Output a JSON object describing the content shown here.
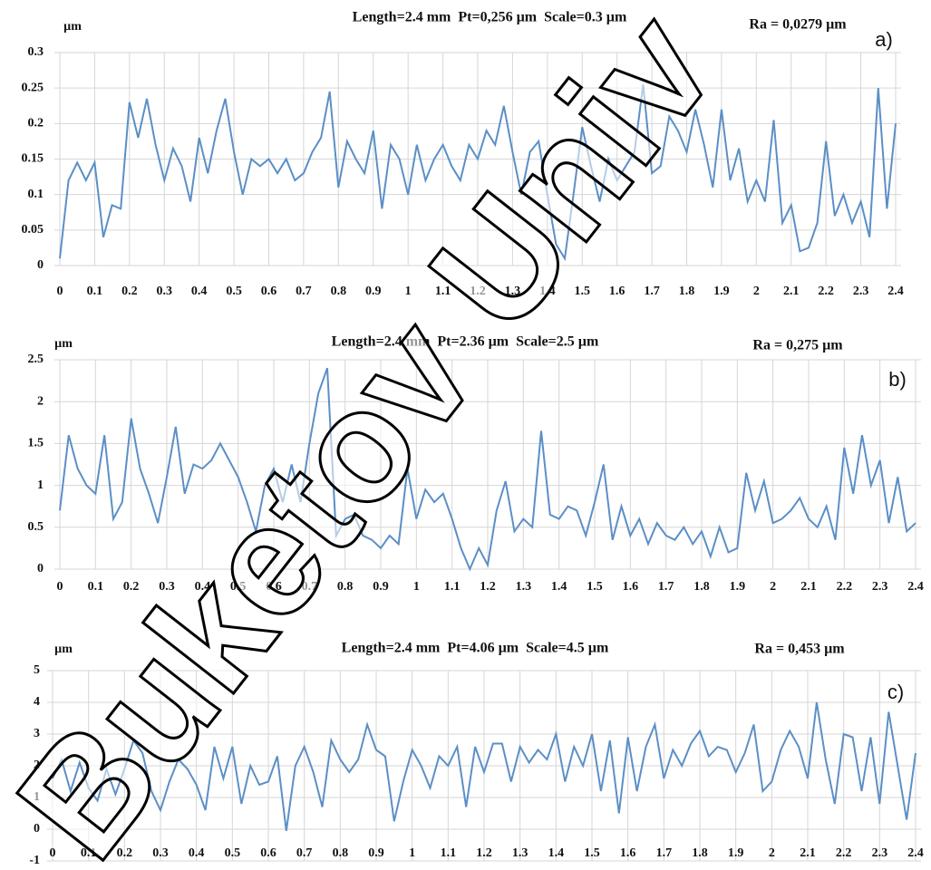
{
  "watermark": "Buketov Univ",
  "chart_data": [
    {
      "type": "line",
      "y_unit": "µm",
      "title": "Length=2.4 mm  Pt=0,256 µm  Scale=0.3 µm",
      "annotation": "Ra = 0,0279 µm",
      "panel": "a)",
      "color": "#5b8fc6",
      "grid": true,
      "x": [
        0,
        0.025,
        0.05,
        0.075,
        0.1,
        0.125,
        0.15,
        0.175,
        0.2,
        0.225,
        0.25,
        0.275,
        0.3,
        0.325,
        0.35,
        0.375,
        0.4,
        0.425,
        0.45,
        0.475,
        0.5,
        0.525,
        0.55,
        0.575,
        0.6,
        0.625,
        0.65,
        0.675,
        0.7,
        0.725,
        0.75,
        0.775,
        0.8,
        0.825,
        0.85,
        0.875,
        0.9,
        0.925,
        0.95,
        0.975,
        1,
        1.025,
        1.05,
        1.075,
        1.1,
        1.125,
        1.15,
        1.175,
        1.2,
        1.225,
        1.25,
        1.275,
        1.3,
        1.325,
        1.35,
        1.375,
        1.4,
        1.425,
        1.45,
        1.475,
        1.5,
        1.525,
        1.55,
        1.575,
        1.6,
        1.625,
        1.65,
        1.675,
        1.7,
        1.725,
        1.75,
        1.775,
        1.8,
        1.825,
        1.85,
        1.875,
        1.9,
        1.925,
        1.95,
        1.975,
        2,
        2.025,
        2.05,
        2.075,
        2.1,
        2.125,
        2.15,
        2.175,
        2.2,
        2.225,
        2.25,
        2.275,
        2.3,
        2.325,
        2.35,
        2.375,
        2.4
      ],
      "values": [
        0.01,
        0.12,
        0.145,
        0.12,
        0.145,
        0.04,
        0.085,
        0.08,
        0.23,
        0.18,
        0.235,
        0.17,
        0.12,
        0.165,
        0.14,
        0.09,
        0.18,
        0.13,
        0.19,
        0.235,
        0.16,
        0.1,
        0.15,
        0.14,
        0.15,
        0.13,
        0.15,
        0.12,
        0.13,
        0.16,
        0.18,
        0.245,
        0.11,
        0.175,
        0.15,
        0.13,
        0.19,
        0.08,
        0.17,
        0.15,
        0.1,
        0.17,
        0.12,
        0.15,
        0.17,
        0.14,
        0.12,
        0.17,
        0.15,
        0.19,
        0.17,
        0.225,
        0.16,
        0.1,
        0.16,
        0.175,
        0.1,
        0.03,
        0.01,
        0.1,
        0.195,
        0.14,
        0.09,
        0.15,
        0.12,
        0.14,
        0.16,
        0.255,
        0.13,
        0.14,
        0.21,
        0.19,
        0.16,
        0.22,
        0.17,
        0.11,
        0.22,
        0.12,
        0.165,
        0.09,
        0.12,
        0.09,
        0.205,
        0.06,
        0.085,
        0.02,
        0.025,
        0.06,
        0.175,
        0.07,
        0.1,
        0.06,
        0.09,
        0.04,
        0.25,
        0.08,
        0.2
      ],
      "xlim": [
        0,
        2.4
      ],
      "xticks": [
        0,
        0.1,
        0.2,
        0.3,
        0.4,
        0.5,
        0.6,
        0.7,
        0.8,
        0.9,
        1,
        1.1,
        1.2,
        1.3,
        1.4,
        1.5,
        1.6,
        1.7,
        1.8,
        1.9,
        2,
        2.1,
        2.2,
        2.3,
        2.4
      ],
      "ylim": [
        0,
        0.3
      ],
      "yticks": [
        0,
        0.05,
        0.1,
        0.15,
        0.2,
        0.25,
        0.3
      ]
    },
    {
      "type": "line",
      "y_unit": "µm",
      "title": "Length=2.4 mm  Pt=2.36 µm  Scale=2.5 µm",
      "annotation": "Ra = 0,275 µm",
      "panel": "b)",
      "color": "#5b8fc6",
      "grid": true,
      "x": [
        0,
        0.025,
        0.05,
        0.075,
        0.1,
        0.125,
        0.15,
        0.175,
        0.2,
        0.225,
        0.25,
        0.275,
        0.3,
        0.325,
        0.35,
        0.375,
        0.4,
        0.425,
        0.45,
        0.475,
        0.5,
        0.525,
        0.55,
        0.575,
        0.6,
        0.625,
        0.65,
        0.675,
        0.7,
        0.725,
        0.75,
        0.775,
        0.8,
        0.825,
        0.85,
        0.875,
        0.9,
        0.925,
        0.95,
        0.975,
        1,
        1.025,
        1.05,
        1.075,
        1.1,
        1.125,
        1.15,
        1.175,
        1.2,
        1.225,
        1.25,
        1.275,
        1.3,
        1.325,
        1.35,
        1.375,
        1.4,
        1.425,
        1.45,
        1.475,
        1.5,
        1.525,
        1.55,
        1.575,
        1.6,
        1.625,
        1.65,
        1.675,
        1.7,
        1.725,
        1.75,
        1.775,
        1.8,
        1.825,
        1.85,
        1.875,
        1.9,
        1.925,
        1.95,
        1.975,
        2,
        2.025,
        2.05,
        2.075,
        2.1,
        2.125,
        2.15,
        2.175,
        2.2,
        2.225,
        2.25,
        2.275,
        2.3,
        2.325,
        2.35,
        2.375,
        2.4
      ],
      "values": [
        0.7,
        1.6,
        1.2,
        1.0,
        0.9,
        1.6,
        0.6,
        0.8,
        1.8,
        1.2,
        0.9,
        0.55,
        1.1,
        1.7,
        0.9,
        1.25,
        1.2,
        1.3,
        1.5,
        1.3,
        1.1,
        0.8,
        0.45,
        1.0,
        1.2,
        0.8,
        1.25,
        0.8,
        1.5,
        2.1,
        2.4,
        0.4,
        0.6,
        0.65,
        0.4,
        0.35,
        0.25,
        0.4,
        0.3,
        1.2,
        0.6,
        0.95,
        0.8,
        0.9,
        0.6,
        0.25,
        0.0,
        0.25,
        0.05,
        0.7,
        1.05,
        0.45,
        0.6,
        0.5,
        1.65,
        0.65,
        0.6,
        0.75,
        0.7,
        0.4,
        0.8,
        1.25,
        0.35,
        0.75,
        0.4,
        0.6,
        0.3,
        0.55,
        0.4,
        0.35,
        0.5,
        0.3,
        0.45,
        0.15,
        0.5,
        0.2,
        0.25,
        1.15,
        0.7,
        1.05,
        0.55,
        0.6,
        0.7,
        0.85,
        0.6,
        0.5,
        0.75,
        0.35,
        1.45,
        0.9,
        1.6,
        1.0,
        1.3,
        0.55,
        1.1,
        0.45,
        0.55
      ],
      "xlim": [
        0,
        2.4
      ],
      "xticks": [
        0,
        0.1,
        0.2,
        0.3,
        0.4,
        0.5,
        0.6,
        0.7,
        0.8,
        0.9,
        1,
        1.1,
        1.2,
        1.3,
        1.4,
        1.5,
        1.6,
        1.7,
        1.8,
        1.9,
        2,
        2.1,
        2.2,
        2.3,
        2.4
      ],
      "ylim": [
        0,
        2.5
      ],
      "yticks": [
        0,
        0.5,
        1,
        1.5,
        2,
        2.5
      ]
    },
    {
      "type": "line",
      "y_unit": "µm",
      "title": "Length=2.4 mm  Pt=4.06 µm  Scale=4.5 µm",
      "annotation": "Ra = 0,453 µm",
      "panel": "c)",
      "color": "#5b8fc6",
      "grid": true,
      "x": [
        0,
        0.025,
        0.05,
        0.075,
        0.1,
        0.125,
        0.15,
        0.175,
        0.2,
        0.225,
        0.25,
        0.275,
        0.3,
        0.325,
        0.35,
        0.375,
        0.4,
        0.425,
        0.45,
        0.475,
        0.5,
        0.525,
        0.55,
        0.575,
        0.6,
        0.625,
        0.65,
        0.675,
        0.7,
        0.725,
        0.75,
        0.775,
        0.8,
        0.825,
        0.85,
        0.875,
        0.9,
        0.925,
        0.95,
        0.975,
        1,
        1.025,
        1.05,
        1.075,
        1.1,
        1.125,
        1.15,
        1.175,
        1.2,
        1.225,
        1.25,
        1.275,
        1.3,
        1.325,
        1.35,
        1.375,
        1.4,
        1.425,
        1.45,
        1.475,
        1.5,
        1.525,
        1.55,
        1.575,
        1.6,
        1.625,
        1.65,
        1.675,
        1.7,
        1.725,
        1.75,
        1.775,
        1.8,
        1.825,
        1.85,
        1.875,
        1.9,
        1.925,
        1.95,
        1.975,
        2,
        2.025,
        2.05,
        2.075,
        2.1,
        2.125,
        2.15,
        2.175,
        2.2,
        2.225,
        2.25,
        2.275,
        2.3,
        2.325,
        2.35,
        2.375,
        2.4
      ],
      "values": [
        1.6,
        2.2,
        1.2,
        2.1,
        1.3,
        0.9,
        1.9,
        1.1,
        1.9,
        2.8,
        2.4,
        1.2,
        0.6,
        1.5,
        2.2,
        1.9,
        1.4,
        0.6,
        2.6,
        1.6,
        2.6,
        0.8,
        2.0,
        1.4,
        1.5,
        2.3,
        -0.05,
        2.0,
        2.6,
        1.8,
        0.7,
        2.8,
        2.2,
        1.8,
        2.2,
        3.3,
        2.5,
        2.3,
        0.25,
        1.5,
        2.5,
        2.0,
        1.3,
        2.3,
        2.0,
        2.6,
        0.7,
        2.6,
        1.8,
        2.7,
        2.7,
        1.5,
        2.6,
        2.1,
        2.5,
        2.2,
        3.0,
        1.5,
        2.6,
        2.0,
        3.0,
        1.2,
        2.8,
        0.5,
        2.9,
        1.2,
        2.6,
        3.3,
        1.6,
        2.5,
        2.0,
        2.7,
        3.1,
        2.3,
        2.6,
        2.5,
        1.8,
        2.4,
        3.3,
        1.2,
        1.5,
        2.5,
        3.1,
        2.6,
        1.6,
        4.0,
        2.2,
        0.8,
        3.0,
        2.9,
        1.2,
        2.9,
        0.8,
        3.7,
        2.0,
        0.3,
        2.4
      ],
      "xlim": [
        0,
        2.4
      ],
      "xticks": [
        0,
        0.1,
        0.2,
        0.3,
        0.4,
        0.5,
        0.6,
        0.7,
        0.8,
        0.9,
        1,
        1.1,
        1.2,
        1.3,
        1.4,
        1.5,
        1.6,
        1.7,
        1.8,
        1.9,
        2,
        2.1,
        2.2,
        2.3,
        2.4
      ],
      "ylim": [
        -1,
        5
      ],
      "yticks": [
        -1,
        0,
        1,
        2,
        3,
        4,
        5
      ]
    }
  ]
}
